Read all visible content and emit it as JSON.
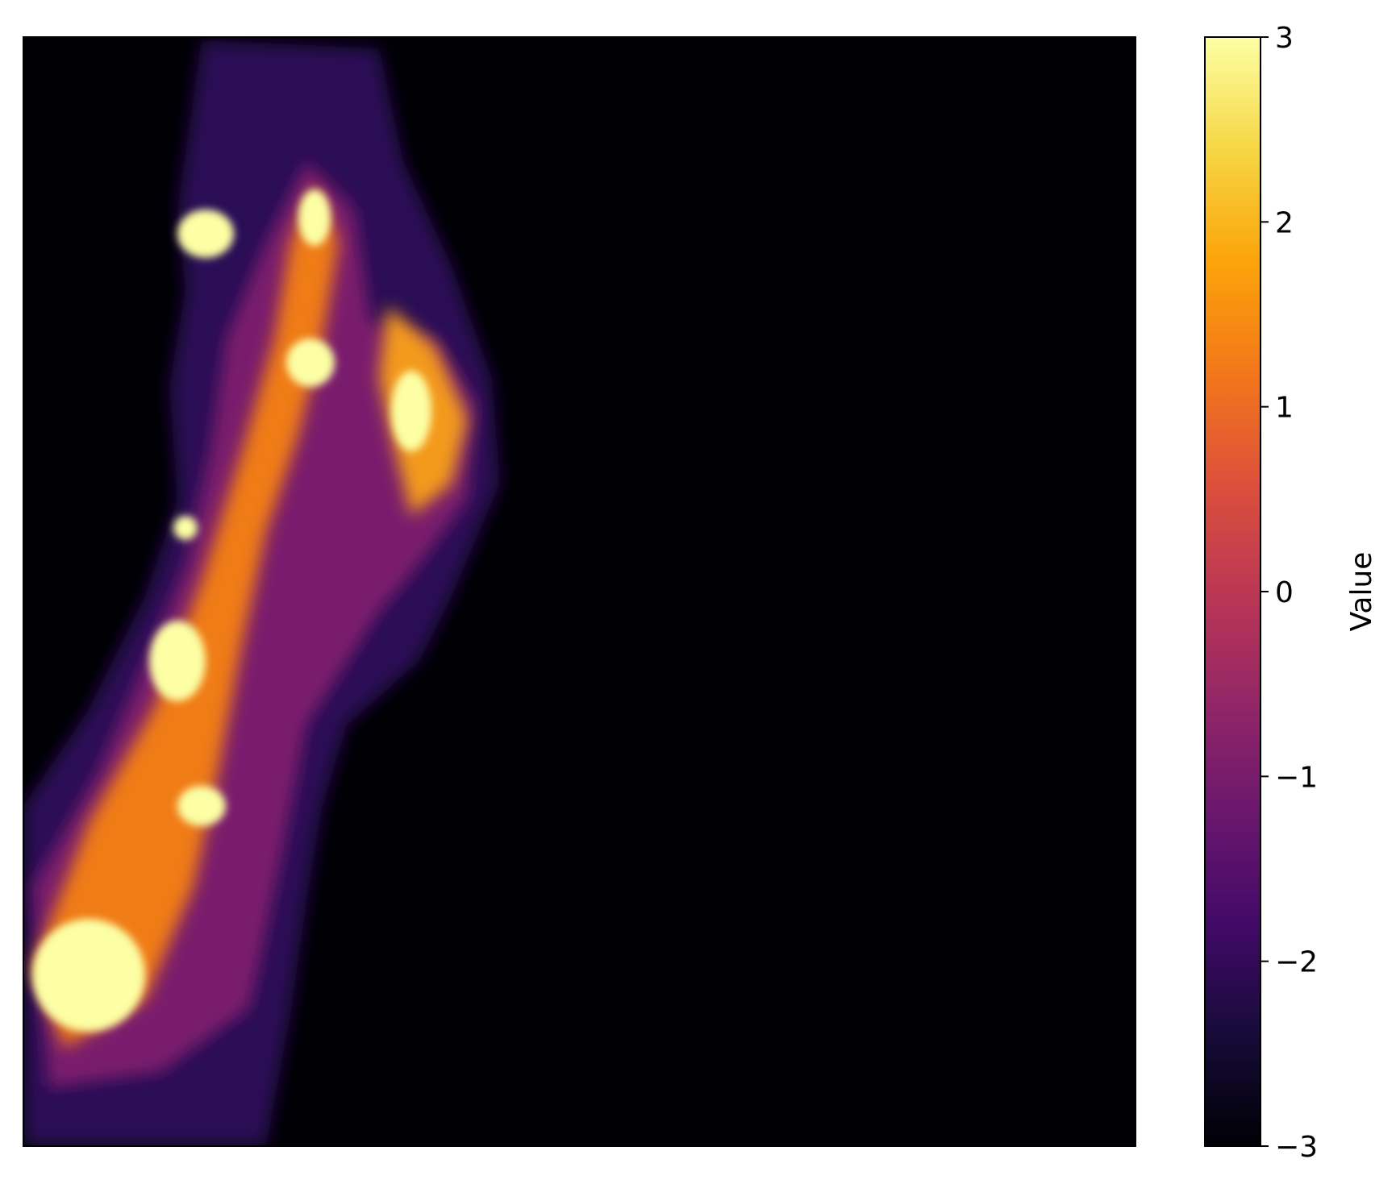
{
  "chart_data": {
    "type": "heatmap",
    "title": "",
    "xlabel": "",
    "ylabel": "",
    "colormap": "inferno",
    "vmin": -3,
    "vmax": 3,
    "colorbar": {
      "label": "Value",
      "ticks": [
        3,
        2,
        1,
        0,
        -1,
        -2,
        -3
      ],
      "tick_labels": [
        "3",
        "2",
        "1",
        "0",
        "−1",
        "−2",
        "−3"
      ]
    },
    "x_ticks_shown": false,
    "y_ticks_shown": false,
    "description_values": {
      "background_value": -3,
      "ridge_peak_value": 3
    }
  },
  "colors": {
    "background": "#000004",
    "low": "#1b0c41",
    "mid_low": "#781c6d",
    "mid": "#bb3754",
    "mid_high": "#ed6925",
    "high": "#fbb61a",
    "peak": "#fcffa4"
  }
}
